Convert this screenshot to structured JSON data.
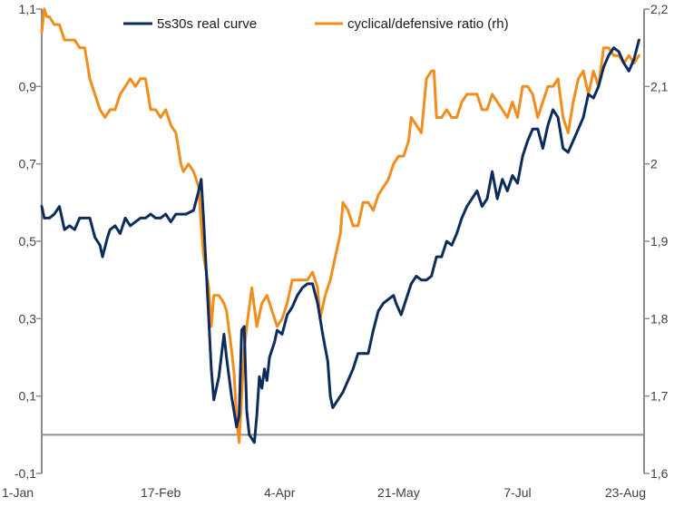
{
  "chart_data": {
    "type": "line",
    "title": "",
    "xlabel": "",
    "ylabel": "",
    "y2label": "",
    "x_ticks": [
      "1-Jan",
      "17-Feb",
      "4-Apr",
      "21-May",
      "7-Jul",
      "23-Aug"
    ],
    "x_tick_days": [
      0,
      47,
      94,
      141,
      188,
      235
    ],
    "x_range_days": [
      0,
      238
    ],
    "y_left": {
      "ticks": [
        "-0,1",
        "0,1",
        "0,3",
        "0,5",
        "0,7",
        "0,9",
        "1,1"
      ],
      "tick_values": [
        -0.1,
        0.1,
        0.3,
        0.5,
        0.7,
        0.9,
        1.1
      ],
      "range": [
        -0.1,
        1.1
      ]
    },
    "y_right": {
      "ticks": [
        "1,6",
        "1,7",
        "1,8",
        "1,9",
        "2",
        "2,1",
        "2,2"
      ],
      "tick_values": [
        1.6,
        1.7,
        1.8,
        1.9,
        2.0,
        2.1,
        2.2
      ],
      "range": [
        1.6,
        2.2
      ]
    },
    "zero_line": 0,
    "grid": false,
    "legend_position": "top",
    "series": [
      {
        "name": "5s30s real curve",
        "axis": "left",
        "color": "#0d2c5e",
        "points": [
          [
            0,
            0.59
          ],
          [
            1,
            0.56
          ],
          [
            3,
            0.56
          ],
          [
            5,
            0.57
          ],
          [
            7,
            0.59
          ],
          [
            9,
            0.53
          ],
          [
            11,
            0.54
          ],
          [
            13,
            0.53
          ],
          [
            15,
            0.56
          ],
          [
            17,
            0.56
          ],
          [
            19,
            0.56
          ],
          [
            21,
            0.51
          ],
          [
            23,
            0.49
          ],
          [
            24,
            0.46
          ],
          [
            26,
            0.51
          ],
          [
            27,
            0.53
          ],
          [
            29,
            0.54
          ],
          [
            31,
            0.52
          ],
          [
            33,
            0.56
          ],
          [
            35,
            0.54
          ],
          [
            37,
            0.55
          ],
          [
            39,
            0.56
          ],
          [
            41,
            0.56
          ],
          [
            43,
            0.57
          ],
          [
            45,
            0.56
          ],
          [
            47,
            0.56
          ],
          [
            49,
            0.57
          ],
          [
            51,
            0.55
          ],
          [
            53,
            0.57
          ],
          [
            55,
            0.57
          ],
          [
            57,
            0.57
          ],
          [
            60,
            0.58
          ],
          [
            62,
            0.63
          ],
          [
            63,
            0.66
          ],
          [
            64,
            0.55
          ],
          [
            66,
            0.3
          ],
          [
            67,
            0.17
          ],
          [
            68,
            0.09
          ],
          [
            70,
            0.15
          ],
          [
            72,
            0.26
          ],
          [
            73,
            0.2
          ],
          [
            75,
            0.1
          ],
          [
            77,
            0.02
          ],
          [
            78,
            0.05
          ],
          [
            79,
            0.27
          ],
          [
            80,
            0.28
          ],
          [
            81,
            0.06
          ],
          [
            82,
            0.0
          ],
          [
            84,
            -0.02
          ],
          [
            85,
            0.05
          ],
          [
            86,
            0.15
          ],
          [
            87,
            0.12
          ],
          [
            88,
            0.17
          ],
          [
            89,
            0.14
          ],
          [
            90,
            0.2
          ],
          [
            92,
            0.24
          ],
          [
            93,
            0.27
          ],
          [
            95,
            0.26
          ],
          [
            97,
            0.31
          ],
          [
            99,
            0.33
          ],
          [
            101,
            0.36
          ],
          [
            103,
            0.38
          ],
          [
            105,
            0.39
          ],
          [
            107,
            0.39
          ],
          [
            109,
            0.34
          ],
          [
            111,
            0.26
          ],
          [
            113,
            0.19
          ],
          [
            114,
            0.1
          ],
          [
            115,
            0.07
          ],
          [
            117,
            0.09
          ],
          [
            119,
            0.11
          ],
          [
            121,
            0.14
          ],
          [
            123,
            0.17
          ],
          [
            125,
            0.21
          ],
          [
            127,
            0.21
          ],
          [
            129,
            0.21
          ],
          [
            131,
            0.27
          ],
          [
            133,
            0.32
          ],
          [
            135,
            0.34
          ],
          [
            137,
            0.35
          ],
          [
            139,
            0.36
          ],
          [
            140,
            0.34
          ],
          [
            142,
            0.31
          ],
          [
            144,
            0.35
          ],
          [
            146,
            0.39
          ],
          [
            148,
            0.41
          ],
          [
            150,
            0.4
          ],
          [
            152,
            0.4
          ],
          [
            154,
            0.41
          ],
          [
            156,
            0.46
          ],
          [
            158,
            0.46
          ],
          [
            160,
            0.5
          ],
          [
            162,
            0.49
          ],
          [
            164,
            0.52
          ],
          [
            166,
            0.56
          ],
          [
            168,
            0.59
          ],
          [
            170,
            0.61
          ],
          [
            172,
            0.63
          ],
          [
            174,
            0.59
          ],
          [
            176,
            0.61
          ],
          [
            178,
            0.68
          ],
          [
            180,
            0.61
          ],
          [
            182,
            0.66
          ],
          [
            184,
            0.63
          ],
          [
            186,
            0.67
          ],
          [
            188,
            0.65
          ],
          [
            190,
            0.72
          ],
          [
            192,
            0.76
          ],
          [
            194,
            0.79
          ],
          [
            196,
            0.79
          ],
          [
            198,
            0.74
          ],
          [
            200,
            0.8
          ],
          [
            202,
            0.84
          ],
          [
            204,
            0.82
          ],
          [
            206,
            0.74
          ],
          [
            208,
            0.73
          ],
          [
            210,
            0.76
          ],
          [
            212,
            0.79
          ],
          [
            214,
            0.82
          ],
          [
            216,
            0.88
          ],
          [
            218,
            0.87
          ],
          [
            220,
            0.9
          ],
          [
            222,
            0.95
          ],
          [
            224,
            0.98
          ],
          [
            226,
            1.0
          ],
          [
            228,
            0.99
          ],
          [
            230,
            0.96
          ],
          [
            232,
            0.94
          ],
          [
            234,
            0.97
          ],
          [
            236,
            1.02
          ]
        ]
      },
      {
        "name": "cyclical/defensive ratio (rh)",
        "axis": "right",
        "color": "#f28d1c",
        "points": [
          [
            0,
            2.17
          ],
          [
            1,
            2.2
          ],
          [
            2,
            2.19
          ],
          [
            3,
            2.19
          ],
          [
            5,
            2.18
          ],
          [
            7,
            2.18
          ],
          [
            9,
            2.16
          ],
          [
            11,
            2.16
          ],
          [
            13,
            2.16
          ],
          [
            15,
            2.15
          ],
          [
            17,
            2.15
          ],
          [
            19,
            2.11
          ],
          [
            21,
            2.09
          ],
          [
            23,
            2.07
          ],
          [
            25,
            2.06
          ],
          [
            27,
            2.07
          ],
          [
            29,
            2.07
          ],
          [
            31,
            2.09
          ],
          [
            33,
            2.1
          ],
          [
            35,
            2.11
          ],
          [
            37,
            2.1
          ],
          [
            39,
            2.11
          ],
          [
            41,
            2.11
          ],
          [
            43,
            2.07
          ],
          [
            45,
            2.07
          ],
          [
            47,
            2.06
          ],
          [
            49,
            2.07
          ],
          [
            51,
            2.05
          ],
          [
            53,
            2.04
          ],
          [
            55,
            2.0
          ],
          [
            56,
            1.99
          ],
          [
            58,
            2.0
          ],
          [
            60,
            1.99
          ],
          [
            62,
            1.97
          ],
          [
            63,
            1.92
          ],
          [
            64,
            1.88
          ],
          [
            66,
            1.84
          ],
          [
            67,
            1.79
          ],
          [
            68,
            1.83
          ],
          [
            70,
            1.83
          ],
          [
            72,
            1.82
          ],
          [
            73,
            1.81
          ],
          [
            75,
            1.76
          ],
          [
            76,
            1.73
          ],
          [
            77,
            1.67
          ],
          [
            78,
            1.64
          ],
          [
            79,
            1.7
          ],
          [
            80,
            1.76
          ],
          [
            81,
            1.79
          ],
          [
            83,
            1.84
          ],
          [
            85,
            1.79
          ],
          [
            87,
            1.82
          ],
          [
            89,
            1.83
          ],
          [
            91,
            1.81
          ],
          [
            93,
            1.79
          ],
          [
            95,
            1.8
          ],
          [
            97,
            1.82
          ],
          [
            99,
            1.85
          ],
          [
            101,
            1.85
          ],
          [
            103,
            1.85
          ],
          [
            105,
            1.85
          ],
          [
            107,
            1.86
          ],
          [
            109,
            1.84
          ],
          [
            110,
            1.8
          ],
          [
            112,
            1.83
          ],
          [
            114,
            1.85
          ],
          [
            116,
            1.88
          ],
          [
            118,
            1.91
          ],
          [
            119,
            1.95
          ],
          [
            121,
            1.94
          ],
          [
            123,
            1.92
          ],
          [
            125,
            1.92
          ],
          [
            127,
            1.95
          ],
          [
            129,
            1.95
          ],
          [
            131,
            1.94
          ],
          [
            133,
            1.96
          ],
          [
            135,
            1.97
          ],
          [
            137,
            1.98
          ],
          [
            139,
            2.0
          ],
          [
            141,
            2.01
          ],
          [
            143,
            2.01
          ],
          [
            145,
            2.03
          ],
          [
            146,
            2.06
          ],
          [
            148,
            2.05
          ],
          [
            150,
            2.04
          ],
          [
            152,
            2.11
          ],
          [
            154,
            2.12
          ],
          [
            155,
            2.12
          ],
          [
            156,
            2.06
          ],
          [
            158,
            2.06
          ],
          [
            160,
            2.07
          ],
          [
            162,
            2.06
          ],
          [
            164,
            2.06
          ],
          [
            166,
            2.08
          ],
          [
            168,
            2.09
          ],
          [
            170,
            2.09
          ],
          [
            172,
            2.09
          ],
          [
            174,
            2.07
          ],
          [
            176,
            2.07
          ],
          [
            178,
            2.09
          ],
          [
            180,
            2.08
          ],
          [
            182,
            2.07
          ],
          [
            184,
            2.06
          ],
          [
            186,
            2.08
          ],
          [
            188,
            2.06
          ],
          [
            190,
            2.1
          ],
          [
            192,
            2.1
          ],
          [
            194,
            2.09
          ],
          [
            196,
            2.06
          ],
          [
            198,
            2.08
          ],
          [
            200,
            2.1
          ],
          [
            202,
            2.1
          ],
          [
            204,
            2.11
          ],
          [
            206,
            2.06
          ],
          [
            208,
            2.04
          ],
          [
            210,
            2.08
          ],
          [
            212,
            2.11
          ],
          [
            214,
            2.12
          ],
          [
            216,
            2.09
          ],
          [
            218,
            2.12
          ],
          [
            220,
            2.1
          ],
          [
            222,
            2.15
          ],
          [
            224,
            2.15
          ],
          [
            226,
            2.14
          ],
          [
            228,
            2.14
          ],
          [
            230,
            2.13
          ],
          [
            232,
            2.14
          ],
          [
            234,
            2.13
          ],
          [
            236,
            2.14
          ]
        ]
      }
    ]
  }
}
